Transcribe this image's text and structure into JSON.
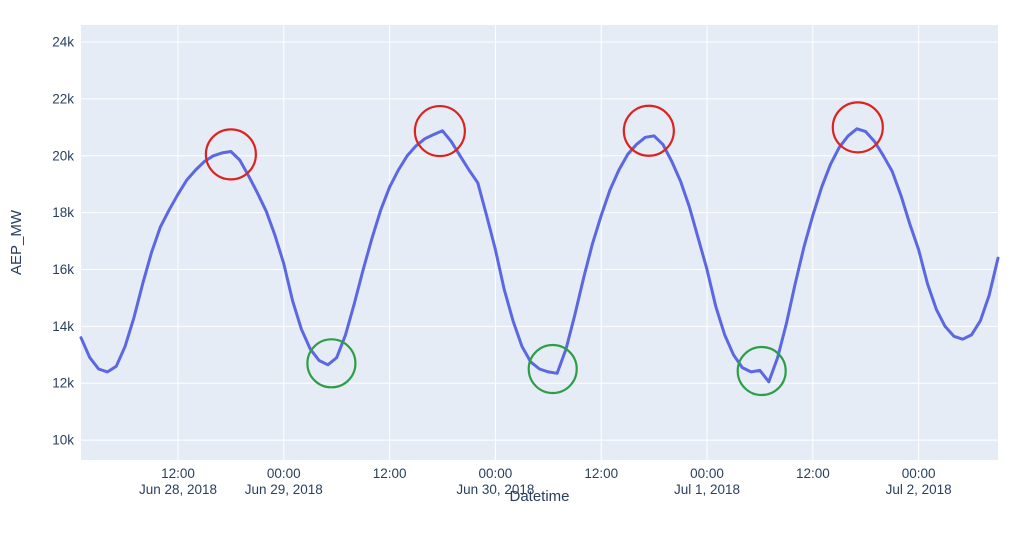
{
  "chart_data": {
    "type": "line",
    "title": "",
    "xlabel": "Datetime",
    "ylabel": "AEP_MW",
    "legend": false,
    "grid": true,
    "x_start": "2018-06-28 01:00",
    "x_step_hours": 1,
    "xlim_hours_after_jun28_midnight": [
      1,
      105
    ],
    "ylim": [
      9300,
      24600
    ],
    "colors": {
      "line": "#5b68e1",
      "plot_bg": "#e5ecf6",
      "grid": "#ffffff",
      "text": "#2a3f5f",
      "paper_bg": "#ffffff",
      "peak_circle": "#db2420",
      "trough_circle": "#2d9e46"
    },
    "series": [
      {
        "name": "AEP_MW",
        "values": [
          13600,
          12900,
          12500,
          12400,
          12600,
          13300,
          14300,
          15500,
          16600,
          17500,
          18100,
          18650,
          19150,
          19500,
          19800,
          20000,
          20100,
          20150,
          19850,
          19300,
          18700,
          18050,
          17200,
          16200,
          14900,
          13900,
          13200,
          12800,
          12650,
          12900,
          13700,
          14800,
          16000,
          17100,
          18100,
          18900,
          19500,
          20000,
          20350,
          20600,
          20750,
          20880,
          20500,
          20000,
          19500,
          19050,
          17900,
          16700,
          15300,
          14200,
          13300,
          12750,
          12500,
          12400,
          12350,
          13200,
          14400,
          15700,
          16900,
          17900,
          18800,
          19500,
          20050,
          20400,
          20650,
          20700,
          20400,
          19800,
          19100,
          18200,
          17100,
          16000,
          14700,
          13700,
          13000,
          12550,
          12400,
          12450,
          12050,
          12900,
          14100,
          15500,
          16800,
          17900,
          18900,
          19700,
          20300,
          20700,
          20950,
          20850,
          20500,
          20000,
          19450,
          18600,
          17600,
          16700,
          15500,
          14600,
          14000,
          13650,
          13550,
          13700,
          14200,
          15100,
          16400
        ]
      }
    ],
    "x_ticks": [
      {
        "hour": 12,
        "time": "12:00",
        "date": "Jun 28, 2018"
      },
      {
        "hour": 24,
        "time": "00:00",
        "date": "Jun 29, 2018"
      },
      {
        "hour": 36,
        "time": "12:00",
        "date": ""
      },
      {
        "hour": 48,
        "time": "00:00",
        "date": "Jun 30, 2018"
      },
      {
        "hour": 60,
        "time": "12:00",
        "date": ""
      },
      {
        "hour": 72,
        "time": "00:00",
        "date": "Jul 1, 2018"
      },
      {
        "hour": 84,
        "time": "12:00",
        "date": ""
      },
      {
        "hour": 96,
        "time": "00:00",
        "date": "Jul 2, 2018"
      }
    ],
    "y_ticks": [
      {
        "value": 10000,
        "label": "10k"
      },
      {
        "value": 12000,
        "label": "12k"
      },
      {
        "value": 14000,
        "label": "14k"
      },
      {
        "value": 16000,
        "label": "16k"
      },
      {
        "value": 18000,
        "label": "18k"
      },
      {
        "value": 20000,
        "label": "20k"
      },
      {
        "value": 22000,
        "label": "22k"
      },
      {
        "value": 24000,
        "label": "24k"
      }
    ],
    "annotations": {
      "peak_circles": [
        {
          "hour": 18.0,
          "value": 20050
        },
        {
          "hour": 41.7,
          "value": 20870
        },
        {
          "hour": 65.4,
          "value": 20880
        },
        {
          "hour": 89.1,
          "value": 21000
        }
      ],
      "trough_circles": [
        {
          "hour": 29.4,
          "value": 12700
        },
        {
          "hour": 54.5,
          "value": 12500
        },
        {
          "hour": 78.2,
          "value": 12430
        }
      ]
    }
  }
}
